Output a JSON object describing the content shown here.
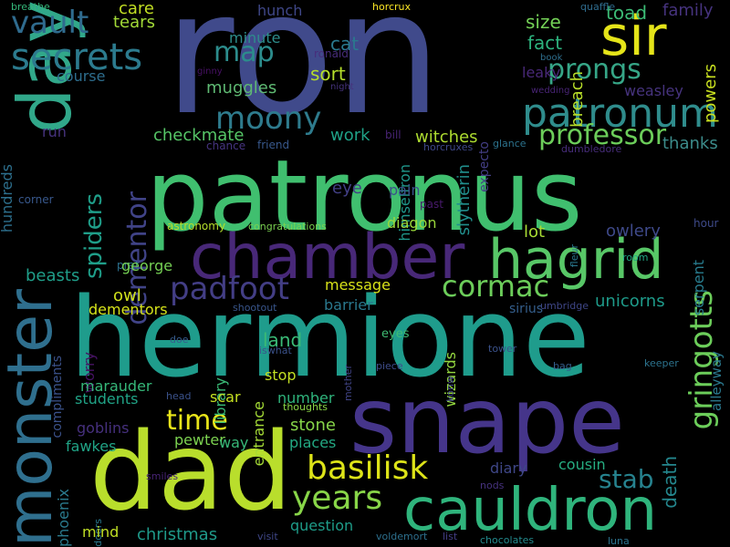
{
  "words": [
    {
      "text": "ron",
      "color": "#404a8b"
    },
    {
      "text": "patronus",
      "color": "#40bf6f"
    },
    {
      "text": "hermione",
      "color": "#1f9c8c"
    },
    {
      "text": "snape",
      "color": "#45358a"
    },
    {
      "text": "dad",
      "color": "#b9de2c"
    },
    {
      "text": "cauldron",
      "color": "#2fb47c"
    },
    {
      "text": "day",
      "color": "#31a88a"
    },
    {
      "text": "monster",
      "color": "#2f6f8e"
    },
    {
      "text": "chamber",
      "color": "#482878"
    },
    {
      "text": "hagrid",
      "color": "#58c767"
    },
    {
      "text": "sir",
      "color": "#e5e419"
    },
    {
      "text": "patronum",
      "color": "#2f8c8c"
    },
    {
      "text": "secrets",
      "color": "#2c7b8e"
    },
    {
      "text": "vault",
      "color": "#2f6b8e"
    },
    {
      "text": "prongs",
      "color": "#36a687"
    },
    {
      "text": "moony",
      "color": "#2e7b8d"
    },
    {
      "text": "map",
      "color": "#2c8c8c"
    },
    {
      "text": "padfoot",
      "color": "#433e85"
    },
    {
      "text": "cormac",
      "color": "#6ccd5a"
    },
    {
      "text": "basilisk",
      "color": "#dde318"
    },
    {
      "text": "time",
      "color": "#e9e51a"
    },
    {
      "text": "years",
      "color": "#88d548"
    },
    {
      "text": "gringotts",
      "color": "#6ccd5a"
    },
    {
      "text": "spiders",
      "color": "#1f9e89"
    },
    {
      "text": "dementor",
      "color": "#404387"
    },
    {
      "text": "professor",
      "color": "#6ccd5a"
    },
    {
      "text": "stab",
      "color": "#26828e"
    },
    {
      "text": "thanks",
      "color": "#3c8c8b"
    },
    {
      "text": "sort",
      "color": "#b5de2b"
    },
    {
      "text": "cat",
      "color": "#2a788e"
    },
    {
      "text": "muggles",
      "color": "#5fba73"
    },
    {
      "text": "minute",
      "color": "#2e8d8c"
    },
    {
      "text": "checkmate",
      "color": "#56c667"
    },
    {
      "text": "work",
      "color": "#1fa187"
    },
    {
      "text": "witches",
      "color": "#addc30"
    },
    {
      "text": "size",
      "color": "#73d056"
    },
    {
      "text": "fact",
      "color": "#2db27d"
    },
    {
      "text": "toad",
      "color": "#3cbb75"
    },
    {
      "text": "family",
      "color": "#46337e"
    },
    {
      "text": "care",
      "color": "#c2df23"
    },
    {
      "text": "tears",
      "color": "#a2da37"
    },
    {
      "text": "hunch",
      "color": "#3f4788"
    },
    {
      "text": "horcrux",
      "color": "#fde725"
    },
    {
      "text": "quaffle",
      "color": "#2f6c8e"
    },
    {
      "text": "breathe",
      "color": "#35b779"
    },
    {
      "text": "course",
      "color": "#2e6e8e"
    },
    {
      "text": "ronald",
      "color": "#472d7b"
    },
    {
      "text": "ginny",
      "color": "#471164"
    },
    {
      "text": "night",
      "color": "#46337e"
    },
    {
      "text": "book",
      "color": "#2e6f8e"
    },
    {
      "text": "wedding",
      "color": "#482475"
    },
    {
      "text": "weasley",
      "color": "#46337e"
    },
    {
      "text": "leaky",
      "color": "#482878"
    },
    {
      "text": "breach",
      "color": "#b8de29"
    },
    {
      "text": "powers",
      "color": "#c8e020"
    },
    {
      "text": "himselfron",
      "color": "#1f978b"
    },
    {
      "text": "slytherin",
      "color": "#218f8d"
    },
    {
      "text": "expecto",
      "color": "#433e85"
    },
    {
      "text": "hundreds",
      "color": "#2d708e"
    },
    {
      "text": "run",
      "color": "#46337e"
    },
    {
      "text": "chance",
      "color": "#463480"
    },
    {
      "text": "friend",
      "color": "#38588c"
    },
    {
      "text": "bill",
      "color": "#482475"
    },
    {
      "text": "horcruxes",
      "color": "#3f4889"
    },
    {
      "text": "glance",
      "color": "#2c738e"
    },
    {
      "text": "dumbledore",
      "color": "#472d7b"
    },
    {
      "text": "serpent",
      "color": "#287c8e"
    },
    {
      "text": "hour",
      "color": "#3e4a89"
    },
    {
      "text": "corner",
      "color": "#38588c"
    },
    {
      "text": "eye",
      "color": "#423f85"
    },
    {
      "text": "pain",
      "color": "#3b528b"
    },
    {
      "text": "past",
      "color": "#481a6c"
    },
    {
      "text": "diagon",
      "color": "#9bd93c"
    },
    {
      "text": "astronomy",
      "color": "#b5de2b"
    },
    {
      "text": "congratulations",
      "color": "#7ad151"
    },
    {
      "text": "fleur",
      "color": "#2a788e"
    },
    {
      "text": "lot",
      "color": "#a8db34"
    },
    {
      "text": "owlery",
      "color": "#3e4989"
    },
    {
      "text": "room",
      "color": "#22a785"
    },
    {
      "text": "prat",
      "color": "#2c718e"
    },
    {
      "text": "beasts",
      "color": "#1f9e89"
    },
    {
      "text": "george",
      "color": "#75d054"
    },
    {
      "text": "message",
      "color": "#d8e219"
    },
    {
      "text": "unicorns",
      "color": "#1e9b8a"
    },
    {
      "text": "owl",
      "color": "#d0e11c"
    },
    {
      "text": "barrier",
      "color": "#2a788e"
    },
    {
      "text": "dementors",
      "color": "#d5e21a"
    },
    {
      "text": "shootout",
      "color": "#39568c"
    },
    {
      "text": "land",
      "color": "#3aba76"
    },
    {
      "text": "sirius",
      "color": "#355f8d"
    },
    {
      "text": "umbridge",
      "color": "#3f4788"
    },
    {
      "text": "alleyway",
      "color": "#2a788e"
    },
    {
      "text": "compliments",
      "color": "#3b528b"
    },
    {
      "text": "doe",
      "color": "#365c8d"
    },
    {
      "text": "iswhat",
      "color": "#3b528b"
    },
    {
      "text": "mother",
      "color": "#414487"
    },
    {
      "text": "eyes",
      "color": "#3fbc73"
    },
    {
      "text": "tower",
      "color": "#3b528b"
    },
    {
      "text": "worry",
      "color": "#471365"
    },
    {
      "text": "library",
      "color": "#3aba76"
    },
    {
      "text": "piece",
      "color": "#3e4c8a"
    },
    {
      "text": "bag",
      "color": "#355f8d"
    },
    {
      "text": "keeper",
      "color": "#2c738e"
    },
    {
      "text": "stop",
      "color": "#c2df23"
    },
    {
      "text": "wizards",
      "color": "#94d840"
    },
    {
      "text": "konw",
      "color": "#404588"
    },
    {
      "text": "marauder",
      "color": "#35b779"
    },
    {
      "text": "entrance",
      "color": "#a5db36"
    },
    {
      "text": "students",
      "color": "#20a386"
    },
    {
      "text": "scar",
      "color": "#c5e021"
    },
    {
      "text": "head",
      "color": "#3b528b"
    },
    {
      "text": "thoughts",
      "color": "#8bd646"
    },
    {
      "text": "number",
      "color": "#2fb47c"
    },
    {
      "text": "death",
      "color": "#24878e"
    },
    {
      "text": "goblins",
      "color": "#46307e"
    },
    {
      "text": "stone",
      "color": "#86d549"
    },
    {
      "text": "fawkes",
      "color": "#20a486"
    },
    {
      "text": "pewter",
      "color": "#7cd250"
    },
    {
      "text": "way",
      "color": "#37b878"
    },
    {
      "text": "places",
      "color": "#23a983"
    },
    {
      "text": "diary",
      "color": "#3f4788"
    },
    {
      "text": "cousin",
      "color": "#26ad81"
    },
    {
      "text": "phoenix",
      "color": "#2a7b8e"
    },
    {
      "text": "smiles",
      "color": "#482475"
    },
    {
      "text": "doors",
      "color": "#2a788e"
    },
    {
      "text": "nods",
      "color": "#46327e"
    },
    {
      "text": "mind",
      "color": "#c0df25"
    },
    {
      "text": "christmas",
      "color": "#1f9a8a"
    },
    {
      "text": "question",
      "color": "#1e9c89"
    },
    {
      "text": "visit",
      "color": "#3f4788"
    },
    {
      "text": "voldemort",
      "color": "#2d708e"
    },
    {
      "text": "list",
      "color": "#433e85"
    },
    {
      "text": "chocolates",
      "color": "#238a8d"
    },
    {
      "text": "luna",
      "color": "#2c728e"
    }
  ]
}
